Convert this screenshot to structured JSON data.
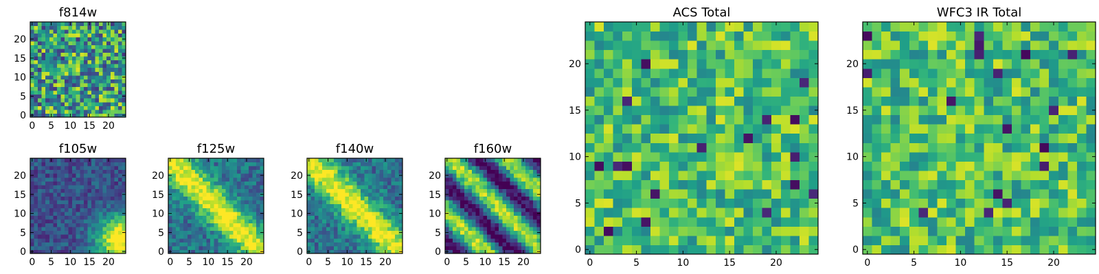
{
  "figure": {
    "background": "#ffffff",
    "colormap": "viridis"
  },
  "chart_data": [
    {
      "id": "f814w",
      "type": "heatmap",
      "title": "f814w",
      "grid_size": 25,
      "pattern": "noise",
      "xlim": [
        0,
        25
      ],
      "ylim": [
        0,
        25
      ],
      "xticks": [
        "0",
        "5",
        "10",
        "15",
        "20"
      ],
      "yticks": [
        "0",
        "5",
        "10",
        "15",
        "20"
      ]
    },
    {
      "id": "f105w",
      "type": "heatmap",
      "title": "f105w",
      "grid_size": 25,
      "pattern": "corner_blob",
      "xlim": [
        0,
        25
      ],
      "ylim": [
        0,
        25
      ],
      "xticks": [
        "0",
        "5",
        "10",
        "15",
        "20"
      ],
      "yticks": [
        "0",
        "5",
        "10",
        "15",
        "20"
      ]
    },
    {
      "id": "f125w",
      "type": "heatmap",
      "title": "f125w",
      "grid_size": 25,
      "pattern": "diagonal_band",
      "xlim": [
        0,
        25
      ],
      "ylim": [
        0,
        25
      ],
      "xticks": [
        "0",
        "5",
        "10",
        "15",
        "20"
      ],
      "yticks": [
        "0",
        "5",
        "10",
        "15",
        "20"
      ]
    },
    {
      "id": "f140w",
      "type": "heatmap",
      "title": "f140w",
      "grid_size": 25,
      "pattern": "diagonal_band",
      "xlim": [
        0,
        25
      ],
      "ylim": [
        0,
        25
      ],
      "xticks": [
        "0",
        "5",
        "10",
        "15",
        "20"
      ],
      "yticks": [
        "0",
        "5",
        "10",
        "15",
        "20"
      ]
    },
    {
      "id": "f160w",
      "type": "heatmap",
      "title": "f160w",
      "grid_size": 25,
      "pattern": "diagonal_stripes",
      "xlim": [
        0,
        25
      ],
      "ylim": [
        0,
        25
      ],
      "xticks": [
        "0",
        "5",
        "10",
        "15",
        "20"
      ],
      "yticks": [
        "0",
        "5",
        "10",
        "15",
        "20"
      ]
    },
    {
      "id": "acs_total",
      "type": "heatmap",
      "title": "ACS Total",
      "grid_size": 25,
      "pattern": "bright_noise",
      "xlim": [
        0,
        25
      ],
      "ylim": [
        0,
        25
      ],
      "xticks": [
        "0",
        "5",
        "10",
        "15",
        "20"
      ],
      "yticks": [
        "0",
        "5",
        "10",
        "15",
        "20"
      ]
    },
    {
      "id": "wfc3_ir_total",
      "type": "heatmap",
      "title": "WFC3 IR Total",
      "grid_size": 25,
      "pattern": "bright_noise",
      "xlim": [
        0,
        25
      ],
      "ylim": [
        0,
        25
      ],
      "xticks": [
        "0",
        "5",
        "10",
        "15",
        "20"
      ],
      "yticks": [
        "0",
        "5",
        "10",
        "15",
        "20"
      ]
    }
  ]
}
